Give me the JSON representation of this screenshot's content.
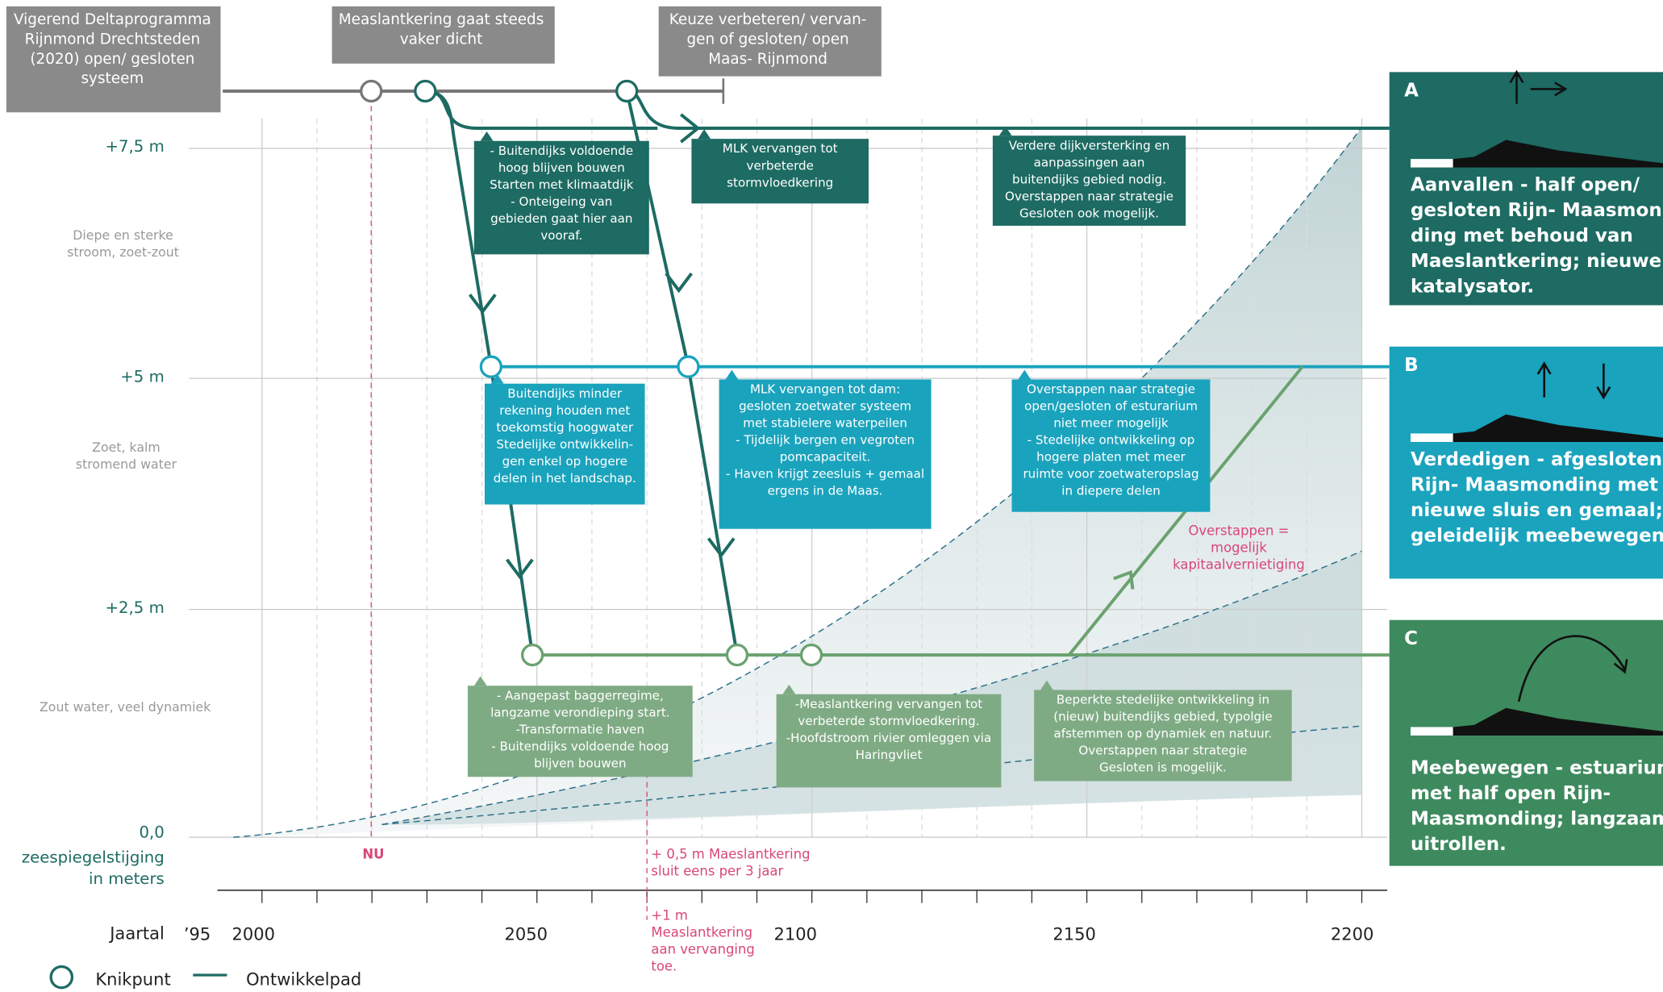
{
  "top_boxes": [
    {
      "lines": [
        "Vigerend Deltaprogramma",
        "Rijnmond Drechtsteden",
        "(2020) open/ gesloten",
        "systeem"
      ]
    },
    {
      "lines": [
        "Measlantkering gaat steeds",
        "vaker dicht"
      ]
    },
    {
      "lines": [
        "Keuze verbeteren/ vervan-",
        "gen of gesloten/ open",
        "Maas- Rijnmond"
      ]
    }
  ],
  "y_axis": {
    "labels": [
      "+7,5 m",
      "+5 m",
      "+2,5 m",
      "0,0"
    ],
    "title": [
      "zeespiegelstijging",
      "in meters"
    ]
  },
  "zones": [
    [
      "Diepe en sterke",
      "stroom, zoet-zout"
    ],
    [
      "Zoet, kalm",
      "stromend water"
    ],
    [
      "Zout water, veel dynamiek"
    ]
  ],
  "x_axis": {
    "title": "Jaartal",
    "labels": [
      "’95",
      "2000",
      "2050",
      "2100",
      "2150",
      "2200"
    ]
  },
  "markers": {
    "now": "NU",
    "half_meter": [
      "+ 0,5 m Maeslantkering",
      "sluit eens per 3 jaar"
    ],
    "one_meter": [
      "+1 m",
      "Measlantkering",
      "aan vervanging",
      "toe."
    ]
  },
  "notes": [
    {
      "lines": [
        "- Buitendijks voldoende",
        "hoog blijven bouwen",
        "Starten met klimaatdijk",
        "- Onteigeing van",
        "gebieden gaat hier aan",
        "vooraf."
      ]
    },
    {
      "lines": [
        "MLK vervangen tot",
        "verbeterde",
        "stormvloedkering"
      ]
    },
    {
      "lines": [
        "Verdere dijkversterking en",
        "aanpassingen aan",
        "buitendijks gebied nodig.",
        "Overstappen naar strategie",
        "Gesloten ook mogelijk."
      ]
    },
    {
      "lines": [
        "Buitendijks minder",
        "rekening houden met",
        "toekomstig hoogwater",
        "Stedelijke ontwikkelin-",
        "gen enkel op hogere",
        "delen in het landschap."
      ]
    },
    {
      "lines": [
        "MLK vervangen tot dam:",
        "gesloten zoetwater systeem",
        "met stabielere waterpeilen",
        "- Tijdelijk bergen en vegroten",
        "pomcapaciteit.",
        "- Haven krijgt zeesluis + gemaal",
        "ergens in de Maas."
      ]
    },
    {
      "lines": [
        "Overstappen naar strategie",
        "open/gesloten of esturarium",
        "niet meer mogelijk",
        "- Stedelijke ontwikkeling op",
        "hogere platen met meer",
        "ruimte voor zoetwateropslag",
        "in diepere delen"
      ]
    },
    {
      "lines": [
        "- Aangepast baggerregime,",
        "langzame verondieping start.",
        "-Transformatie haven",
        "- Buitendijks voldoende hoog",
        "blijven bouwen"
      ]
    },
    {
      "lines": [
        "-Measlantkering vervangen tot",
        "verbeterde stormvloedkering.",
        "-Hoofdstroom rivier omleggen via",
        "Haringvliet"
      ]
    },
    {
      "lines": [
        "Beperkte stedelijke ontwikkeling in",
        "(nieuw) buitendijks gebied, typolgie",
        "afstemmen op dynamiek en natuur.",
        "Overstappen naar strategie",
        "Gesloten is mogelijk."
      ]
    }
  ],
  "warning": [
    "Overstappen =",
    "mogelijk",
    "kapitaalvernietiging"
  ],
  "strategies": [
    {
      "letter": "A",
      "lines": [
        "Aanvallen - half open/",
        "gesloten Rijn- Maasmon-",
        "ding met behoud van",
        "Maeslantkering; nieuwe",
        "katalysator."
      ]
    },
    {
      "letter": "B",
      "lines": [
        "Verdedigen - afgesloten",
        "Rijn- Maasmonding met",
        "nieuwe sluis en gemaal;",
        "geleidelijk meebewegen."
      ]
    },
    {
      "letter": "C",
      "lines": [
        "Meebewegen - estuarium",
        "met half open Rijn-",
        "Maasmonding; langzaam",
        "uitrollen."
      ]
    }
  ],
  "legend": {
    "knikpunt": "Knikpunt",
    "ontwikkelpad": "Ontwikkelpad"
  }
}
